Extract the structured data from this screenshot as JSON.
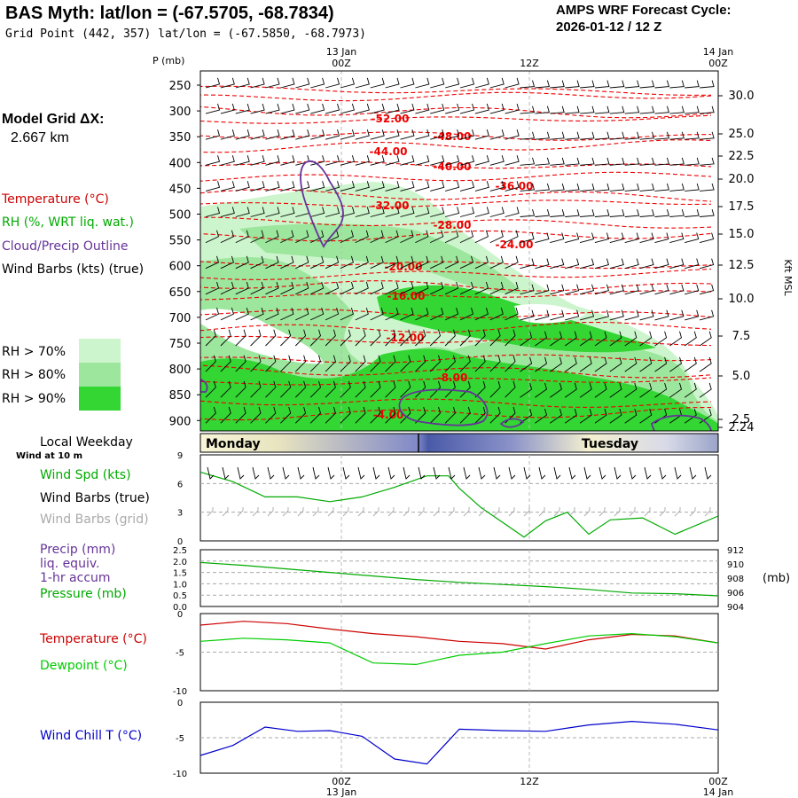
{
  "header": {
    "title": "BAS Myth:  lat/lon = (-67.5705, -68.7834)",
    "grid_point": "Grid Point (442, 357) lat/lon = (-67.5850, -68.7973)",
    "cycle_line1": "AMPS WRF Forecast Cycle:",
    "cycle_line2": "2026-01-12 / 12  Z"
  },
  "model_grid": {
    "label": "Model Grid ΔX:",
    "value": "2.667 km"
  },
  "legend": {
    "temperature": "Temperature (°C)",
    "rh": "RH (%, WRT liq. wat.)",
    "cloud": "Cloud/Precip Outline",
    "barbs": "Wind Barbs (kts) (true)",
    "rh70": "RH > 70%",
    "rh80": "RH > 80%",
    "rh90": "RH > 90%",
    "rh70_color": "#cdf5cd",
    "rh80_color": "#9de69d",
    "rh90_color": "#33d633"
  },
  "time_axis": {
    "top_dates": [
      "13 Jan",
      "14 Jan"
    ],
    "ticks": [
      "00Z",
      "12Z",
      "00Z"
    ],
    "bottom_dates": [
      "13 Jan",
      "14 Jan"
    ]
  },
  "local_weekday": {
    "label": "Local Weekday",
    "wind_note": "Wind at 10 m",
    "days": [
      "Monday",
      "Tuesday"
    ]
  },
  "chart_data": [
    {
      "type": "contour",
      "name": "cross-section",
      "y_axis_title": "P (mb)",
      "right_axis_title": "Kft MSL",
      "pressure_levels": [
        250,
        300,
        350,
        400,
        450,
        500,
        550,
        600,
        650,
        700,
        750,
        800,
        850,
        900
      ],
      "height_kft_labels": [
        "30.0",
        "25.0",
        "22.5",
        "20.0",
        "17.5",
        "15.0",
        "12.5",
        "10.0",
        "7.5",
        "5.0",
        "2.5",
        "2.24"
      ],
      "temperature_contour_labels": [
        "-52.00",
        "-48.00",
        "-44.00",
        "-40.00",
        "-36.00",
        "-32.00",
        "-28.00",
        "-24.00",
        "-20.00",
        "-16.00",
        "-12.00",
        "-8.00",
        "-4.00"
      ]
    },
    {
      "type": "line",
      "name": "wind",
      "labels": [
        "Wind Spd (kts)",
        "Wind Barbs (true)",
        "Wind Barbs (grid)"
      ],
      "colors": [
        "#00aa00",
        "#000000",
        "#aaaaaa"
      ],
      "ylim": [
        0,
        9
      ],
      "yticks": [
        "9",
        "6",
        "3",
        "0"
      ],
      "x": [
        0,
        3,
        6,
        9,
        12,
        15,
        18,
        21,
        23,
        24,
        26,
        30,
        32,
        34,
        36,
        38,
        41,
        44,
        48
      ],
      "values": [
        7.2,
        6.2,
        4.6,
        4.6,
        4.1,
        4.6,
        5.6,
        6.8,
        6.8,
        5.5,
        3.5,
        0.4,
        2.1,
        3.0,
        0.7,
        2.2,
        2.4,
        0.7,
        2.6
      ]
    },
    {
      "type": "line",
      "name": "precip-pressure",
      "labels": [
        "Precip (mm)",
        "liq. equiv.",
        "1-hr accum",
        "Pressure (mb)"
      ],
      "colors": [
        "#663399",
        "#00aa00"
      ],
      "ylim_left": [
        0,
        2.5
      ],
      "yticks_left": [
        "2.5",
        "2.0",
        "1.5",
        "1.0",
        "0.5",
        "0.0"
      ],
      "ylim_right": [
        904,
        912
      ],
      "yticks_right": [
        "912",
        "910",
        "908",
        "906",
        "904"
      ],
      "right_unit": "(mb)",
      "x": [
        0,
        4,
        8,
        12,
        16,
        20,
        24,
        28,
        32,
        36,
        40,
        44,
        48
      ],
      "pressure": [
        910.2,
        909.8,
        909.3,
        908.8,
        908.3,
        907.8,
        907.4,
        907.1,
        906.8,
        906.4,
        905.9,
        905.8,
        905.5
      ]
    },
    {
      "type": "line",
      "name": "temperature-dewpoint",
      "labels": [
        "Temperature (°C)",
        "Dewpoint (°C)"
      ],
      "colors": [
        "#cc0000",
        "#00cc00"
      ],
      "ylim": [
        -10,
        0
      ],
      "yticks": [
        "0",
        "-5",
        "-10"
      ],
      "x": [
        0,
        4,
        8,
        12,
        16,
        20,
        24,
        28,
        32,
        36,
        40,
        44,
        48
      ],
      "temperature": [
        -1.5,
        -1.0,
        -1.3,
        -2.0,
        -2.6,
        -3.0,
        -3.6,
        -3.9,
        -4.6,
        -3.4,
        -2.7,
        -2.9,
        -3.8
      ],
      "dewpoint": [
        -3.6,
        -3.2,
        -3.4,
        -3.8,
        -6.4,
        -6.6,
        -5.4,
        -5.0,
        -3.9,
        -2.9,
        -2.6,
        -3.0,
        -3.8
      ]
    },
    {
      "type": "line",
      "name": "wind-chill",
      "labels": [
        "Wind Chill T (°C)"
      ],
      "colors": [
        "#0000cc"
      ],
      "ylim": [
        -10,
        0
      ],
      "yticks": [
        "0",
        "-5",
        "-10"
      ],
      "x": [
        0,
        3,
        6,
        9,
        12,
        15,
        18,
        21,
        24,
        28,
        32,
        36,
        40,
        44,
        48
      ],
      "values": [
        -7.5,
        -6.1,
        -3.5,
        -4.1,
        -4.0,
        -4.8,
        -8.0,
        -8.7,
        -3.8,
        -4.0,
        -4.1,
        -3.2,
        -2.7,
        -3.1,
        -3.9
      ]
    }
  ]
}
